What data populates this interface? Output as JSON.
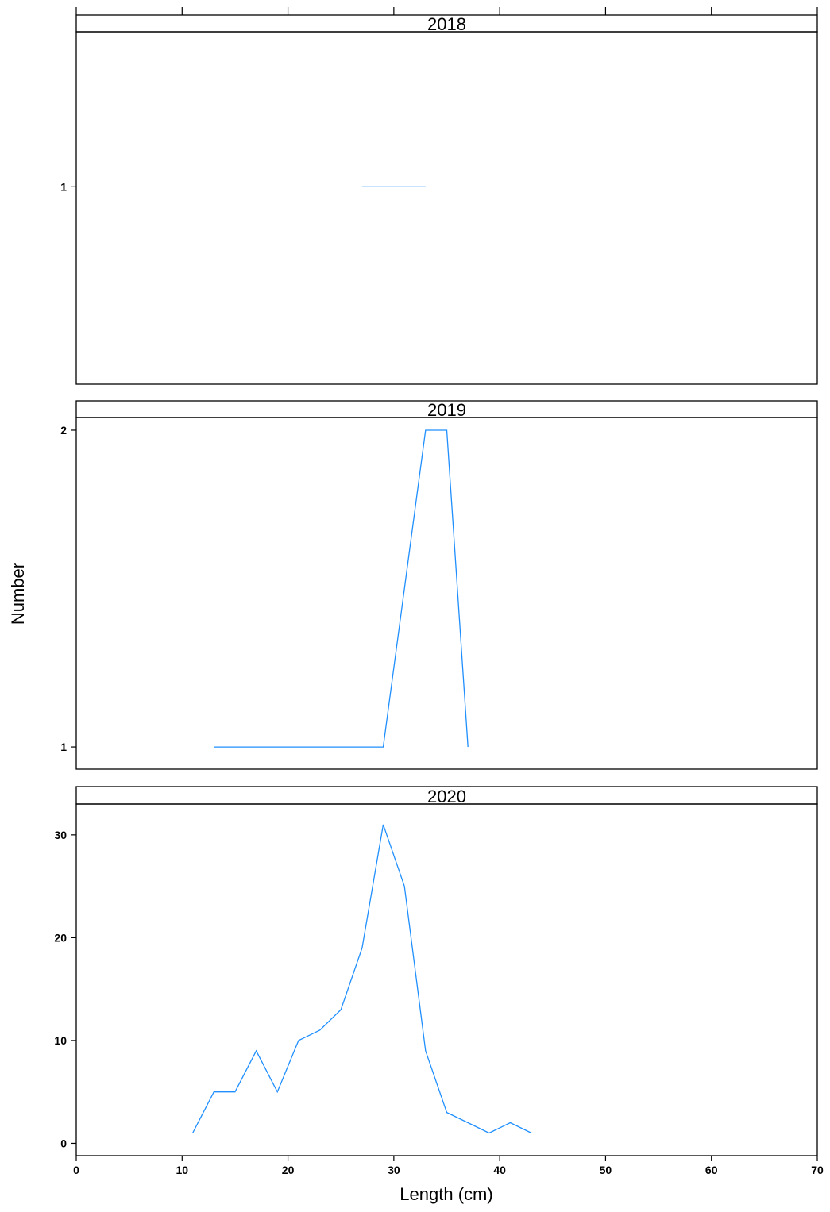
{
  "chart_data": {
    "type": "line",
    "xlabel": "Length (cm)",
    "ylabel": "Number",
    "xlim": [
      0,
      70
    ],
    "x_ticks": [
      "0",
      "10",
      "20",
      "30",
      "40",
      "50",
      "60",
      "70"
    ],
    "series_color": "#1f8fff",
    "panels": [
      {
        "id": "2018",
        "strip": "2018",
        "ylim": [
          0.3,
          1.55
        ],
        "y_ticks": [
          {
            "value": 1,
            "label": "1"
          }
        ],
        "x": [
          27,
          33
        ],
        "y": [
          1,
          1
        ]
      },
      {
        "id": "2019",
        "strip": "2019",
        "ylim": [
          0.93,
          2.04
        ],
        "y_ticks": [
          {
            "value": 1,
            "label": "1"
          },
          {
            "value": 2,
            "label": "2"
          }
        ],
        "x": [
          13,
          15,
          17,
          19,
          21,
          23,
          25,
          27,
          29,
          31,
          33,
          35,
          37
        ],
        "y": [
          1,
          1,
          1,
          1,
          1,
          1,
          1,
          1,
          1,
          1.5,
          2,
          2,
          1
        ]
      },
      {
        "id": "2020",
        "strip": "2020",
        "ylim": [
          -1.2,
          33.0
        ],
        "y_ticks": [
          {
            "value": 0,
            "label": "0"
          },
          {
            "value": 10,
            "label": "10"
          },
          {
            "value": 20,
            "label": "20"
          },
          {
            "value": 30,
            "label": "30"
          }
        ],
        "x": [
          11,
          13,
          15,
          17,
          19,
          21,
          23,
          25,
          27,
          29,
          31,
          33,
          35,
          37,
          39,
          41,
          43
        ],
        "y": [
          1,
          5,
          5,
          9,
          5,
          10,
          11,
          13,
          19,
          31,
          25,
          9,
          3,
          2,
          1,
          2,
          1
        ]
      }
    ]
  }
}
